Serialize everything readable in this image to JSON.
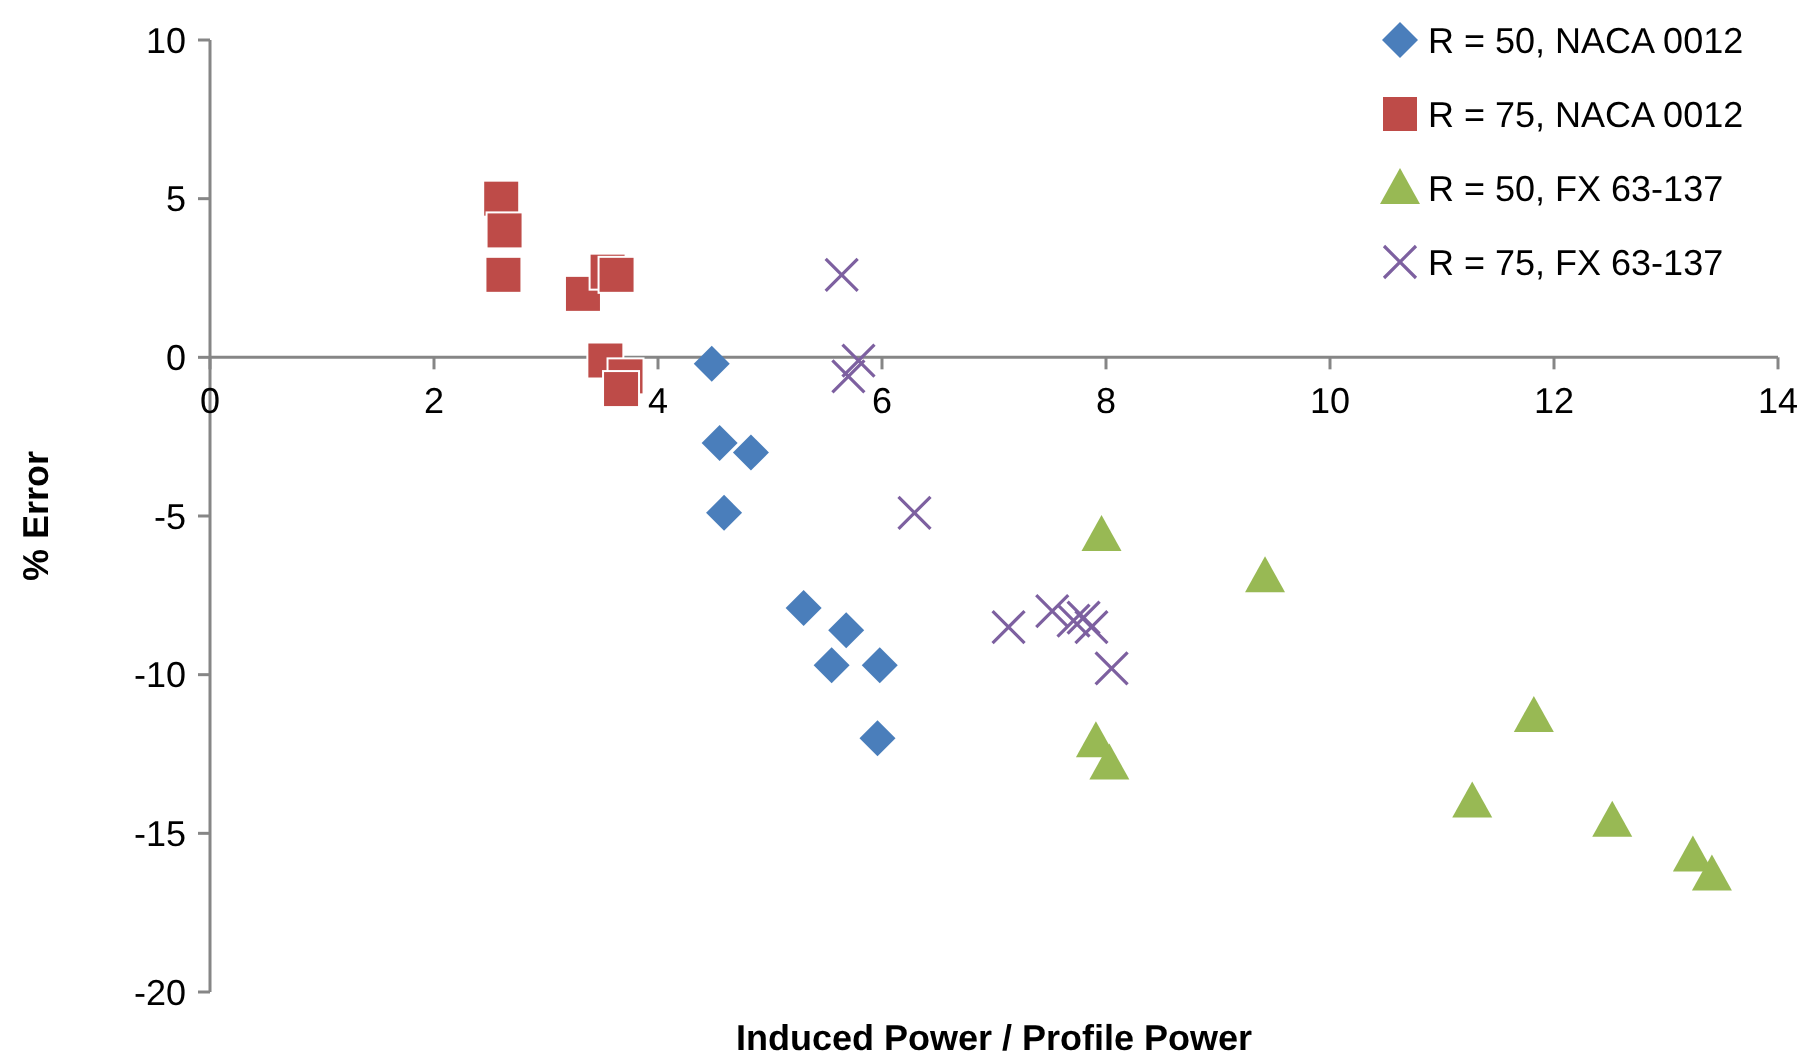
{
  "chart_data": {
    "type": "scatter",
    "xlabel": "Induced Power / Profile Power",
    "ylabel": "% Error",
    "xlim": [
      0,
      14
    ],
    "ylim": [
      -20,
      10
    ],
    "xticks": [
      0,
      2,
      4,
      6,
      8,
      10,
      12,
      14
    ],
    "yticks": [
      -20,
      -15,
      -10,
      -5,
      0,
      5,
      10
    ],
    "grid": false,
    "legend": "top right",
    "series": [
      {
        "name": "R = 50, NACA 0012",
        "color": "#4a7ebb",
        "marker": "diamond",
        "x": [
          4.48,
          4.55,
          4.83,
          4.59,
          5.3,
          5.68,
          5.55,
          5.98,
          5.96
        ],
        "values": [
          -0.2,
          -2.7,
          -3.0,
          -4.9,
          -7.9,
          -8.6,
          -9.7,
          -9.7,
          -12.0
        ]
      },
      {
        "name": "R = 75, NACA 0012",
        "color": "#be4b48",
        "marker": "square",
        "x": [
          2.6,
          2.63,
          2.62,
          3.33,
          3.55,
          3.63,
          3.53,
          3.71,
          3.67
        ],
        "values": [
          5.0,
          4.0,
          2.6,
          2.0,
          2.7,
          2.6,
          -0.1,
          -0.6,
          -1.0
        ]
      },
      {
        "name": "R = 50, FX 63-137",
        "color": "#98b954",
        "marker": "triangle",
        "x": [
          7.96,
          9.42,
          7.91,
          8.03,
          11.82,
          11.27,
          12.52,
          13.24,
          13.41
        ],
        "values": [
          -5.6,
          -6.9,
          -12.1,
          -12.8,
          -11.3,
          -14.0,
          -14.6,
          -15.7,
          -16.3
        ]
      },
      {
        "name": "R = 75, FX 63-137",
        "color": "#7d60a0",
        "marker": "cross",
        "x": [
          5.64,
          5.79,
          5.7,
          6.29,
          7.13,
          7.52,
          7.71,
          7.8,
          7.87,
          8.05
        ],
        "values": [
          2.6,
          -0.1,
          -0.6,
          -4.9,
          -8.5,
          -8.0,
          -8.3,
          -8.2,
          -8.5,
          -9.8
        ]
      }
    ]
  }
}
